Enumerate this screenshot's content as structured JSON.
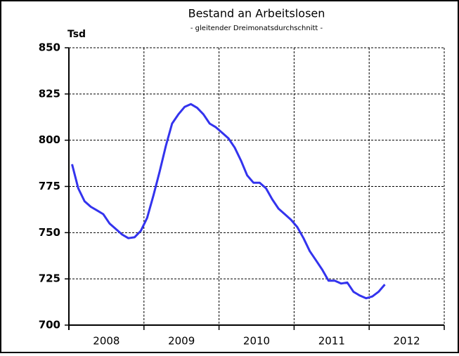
{
  "chart_data": {
    "type": "line",
    "title": "Bestand an Arbeitslosen",
    "subtitle": "- gleitender Dreimonatsdurchschnitt -",
    "y_unit_label": "Tsd",
    "categories": [
      null,
      null,
      null,
      null,
      null,
      null,
      null,
      null,
      null,
      null,
      null,
      null,
      null,
      null,
      null,
      null,
      null,
      null,
      null,
      null,
      null,
      null,
      null,
      null,
      null,
      null,
      null,
      null,
      null,
      null,
      null,
      null,
      null,
      null,
      null,
      null,
      null,
      null,
      null,
      null,
      null,
      null,
      null,
      null,
      null,
      null,
      null,
      null,
      null,
      null,
      null
    ],
    "year_labels": [
      "2008",
      "2009",
      "2010",
      "2011",
      "2012"
    ],
    "series": [
      {
        "color": "#3333ee",
        "values": [
          787,
          774,
          767,
          764,
          762,
          760,
          755,
          752,
          749,
          747,
          747.5,
          751,
          758,
          770,
          783,
          797,
          809,
          814,
          818,
          819.5,
          817.5,
          814,
          809,
          807,
          804,
          801,
          796,
          789,
          781,
          777,
          777,
          774,
          768,
          763,
          760,
          757,
          753,
          747,
          740,
          735,
          730,
          724,
          724,
          722.5,
          723,
          718,
          716,
          714.5,
          715.5,
          718,
          722
        ]
      }
    ],
    "ylim": [
      700,
      850
    ],
    "yticks": [
      700,
      725,
      750,
      775,
      800,
      825,
      850
    ],
    "grid": true
  }
}
